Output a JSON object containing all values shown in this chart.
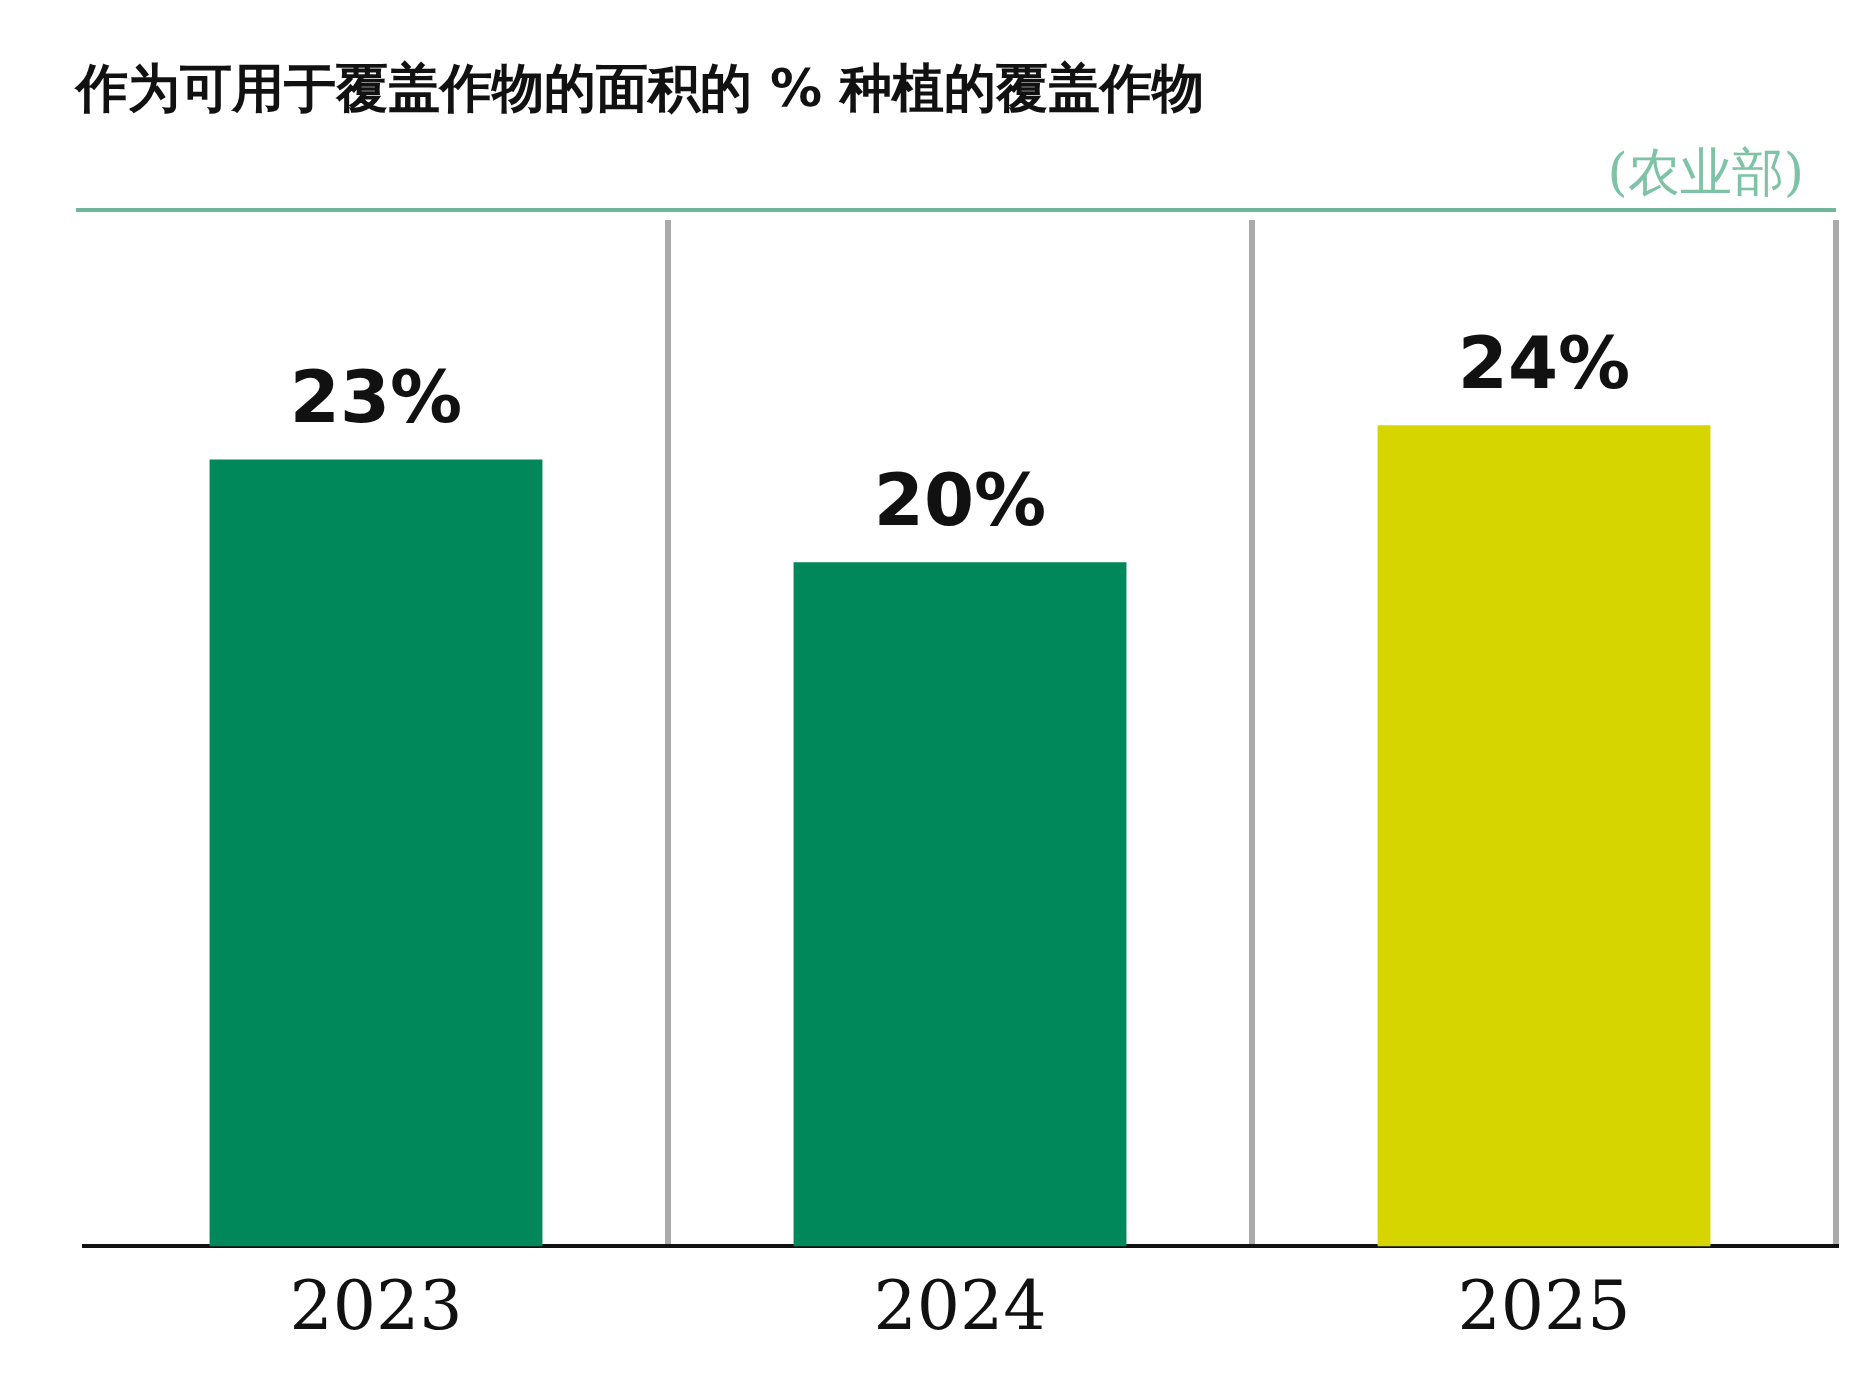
{
  "chart_data": {
    "type": "bar",
    "title": "作为可用于覆盖作物的面积的 % 种植的覆盖作物",
    "annotations": [
      "(农业部)"
    ],
    "categories": [
      "2023",
      "2024",
      "2025"
    ],
    "values": [
      23,
      20,
      24
    ],
    "value_labels": [
      "23%",
      "20%",
      "24%"
    ],
    "colors": [
      "#00875a",
      "#00875a",
      "#d7d500"
    ],
    "grid": "x",
    "legend": false
  }
}
